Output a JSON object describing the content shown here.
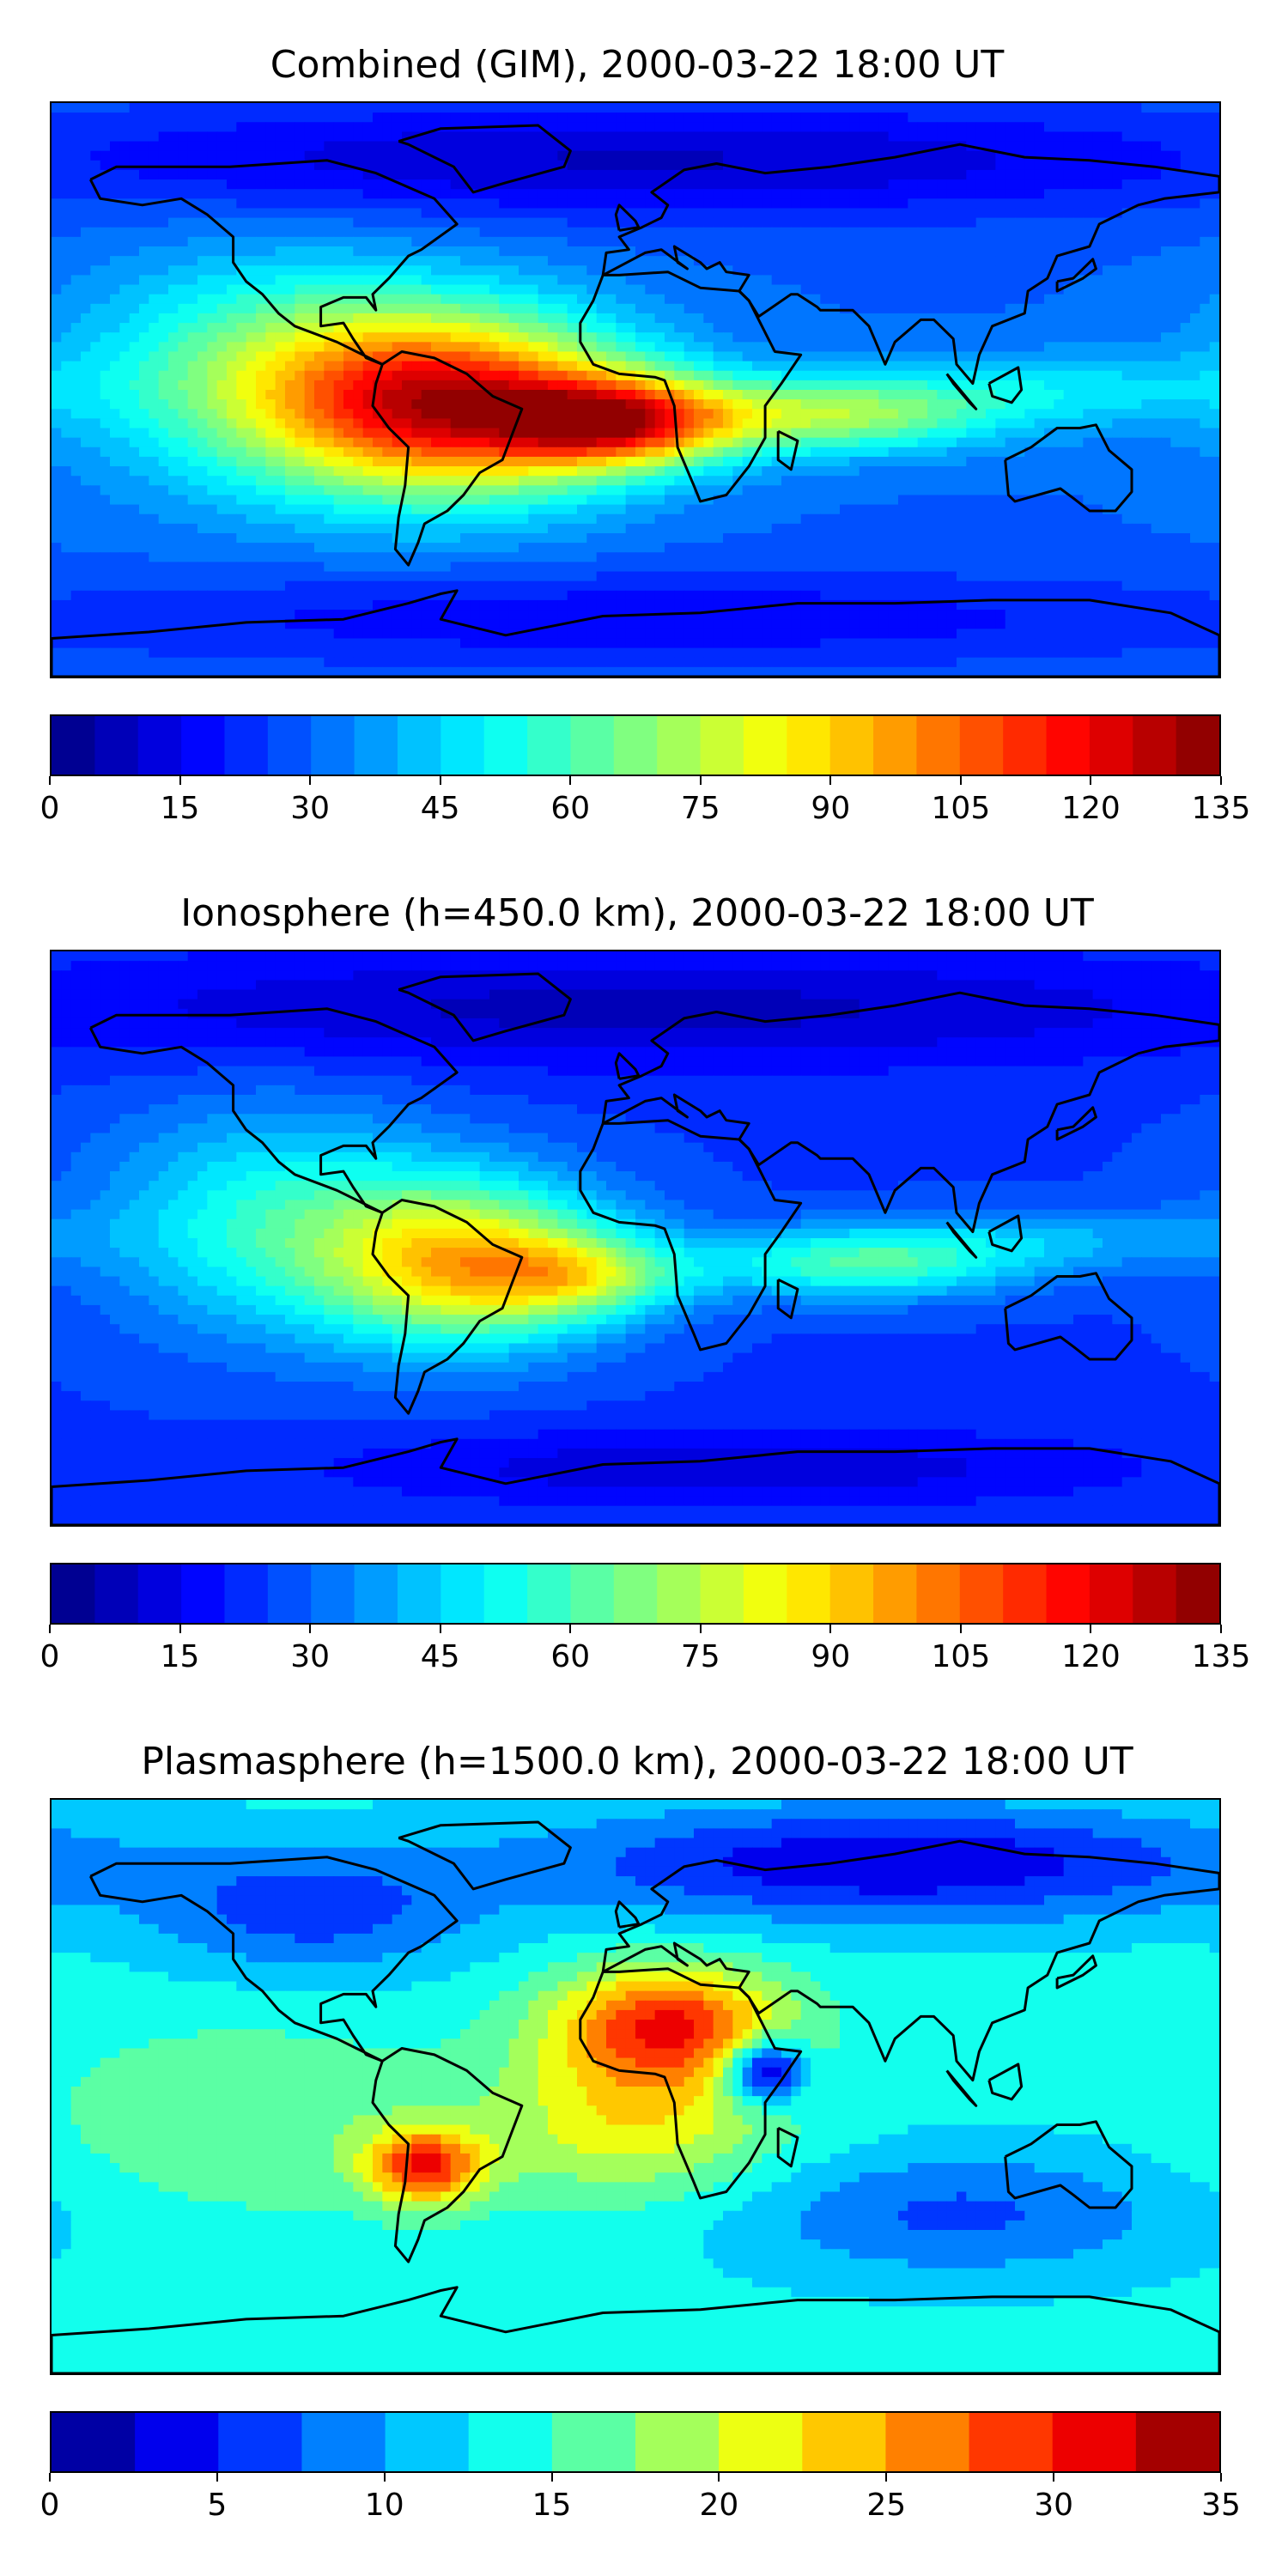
{
  "panels": [
    {
      "title": "Combined (GIM), 2000-03-22 18:00 UT",
      "colorbar": {
        "min": 0,
        "max": 135,
        "step": 5,
        "tick_labels": [
          "0",
          "15",
          "30",
          "45",
          "60",
          "75",
          "90",
          "105",
          "120",
          "135"
        ]
      },
      "field": "combined"
    },
    {
      "title": "Ionosphere  (h=450.0 km), 2000-03-22 18:00 UT",
      "colorbar": {
        "min": 0,
        "max": 135,
        "step": 5,
        "tick_labels": [
          "0",
          "15",
          "30",
          "45",
          "60",
          "75",
          "90",
          "105",
          "120",
          "135"
        ]
      },
      "field": "ionosphere"
    },
    {
      "title": "Plasmasphere (h=1500.0 km), 2000-03-22 18:00 UT",
      "colorbar": {
        "min": 0,
        "max": 35,
        "step": 2.5,
        "tick_labels": [
          "0",
          "5",
          "10",
          "15",
          "20",
          "25",
          "30",
          "35"
        ]
      },
      "field": "plasmasphere"
    }
  ],
  "colormap": "jet",
  "colors": {
    "coastline": "#000000",
    "background": "#ffffff"
  }
}
